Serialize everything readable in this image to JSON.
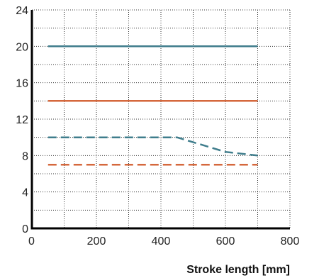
{
  "chart_data": {
    "type": "line",
    "xlabel": "Stroke length [mm]",
    "ylabel": "",
    "xlim": [
      0,
      800
    ],
    "ylim": [
      0,
      24
    ],
    "x_ticks": [
      0,
      200,
      400,
      600,
      800
    ],
    "y_ticks": [
      0,
      4,
      8,
      12,
      16,
      20,
      24
    ],
    "x_minor_step": 100,
    "y_minor_step": 2,
    "grid": "dotted",
    "legend": "none",
    "series": [
      {
        "color": "#3f7d8c",
        "dash": "solid",
        "points": [
          [
            50,
            20
          ],
          [
            700,
            20
          ]
        ]
      },
      {
        "color": "#d5683d",
        "dash": "solid",
        "points": [
          [
            50,
            14
          ],
          [
            700,
            14
          ]
        ]
      },
      {
        "color": "#3f7d8c",
        "dash": "dashed",
        "points": [
          [
            50,
            10
          ],
          [
            450,
            10
          ],
          [
            600,
            8.4
          ],
          [
            700,
            8
          ]
        ]
      },
      {
        "color": "#d5683d",
        "dash": "dashed",
        "points": [
          [
            50,
            7
          ],
          [
            700,
            7
          ]
        ]
      }
    ]
  }
}
